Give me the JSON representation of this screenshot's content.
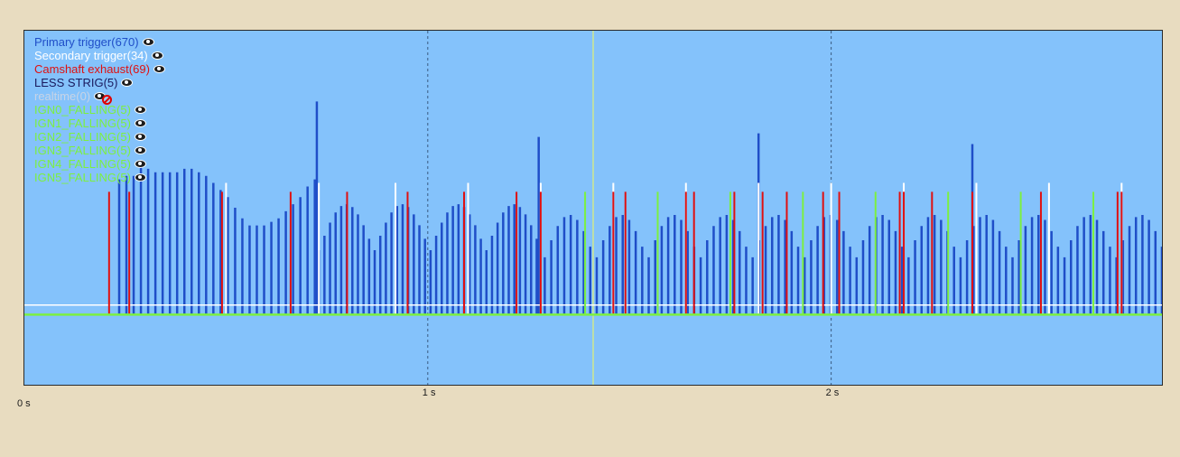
{
  "legend": [
    {
      "label": "Primary trigger(670)",
      "color": "#1f4ec8",
      "icon": "eye-icon",
      "visible": true
    },
    {
      "label": "Secondary trigger(34)",
      "color": "#ffffff",
      "icon": "eye-icon",
      "visible": true
    },
    {
      "label": "Camshaft exhaust(69)",
      "color": "#e01010",
      "icon": "eye-icon",
      "visible": true
    },
    {
      "label": "LESS STRIG(5)",
      "color": "#1a1a5e",
      "icon": "eye-icon",
      "visible": true
    },
    {
      "label": "realtime(0)",
      "color": "#c8d4e6",
      "icon": "eye-hidden-icon",
      "visible": false
    },
    {
      "label": "IGN0_FALLING(5)",
      "color": "#7cf040",
      "icon": "eye-icon",
      "visible": true
    },
    {
      "label": "IGN1_FALLING(5)",
      "color": "#7cf040",
      "icon": "eye-icon",
      "visible": true
    },
    {
      "label": "IGN2_FALLING(5)",
      "color": "#7cf040",
      "icon": "eye-icon",
      "visible": true
    },
    {
      "label": "IGN3_FALLING(5)",
      "color": "#7cf040",
      "icon": "eye-icon",
      "visible": true
    },
    {
      "label": "IGN4_FALLING(5)",
      "color": "#7cf040",
      "icon": "eye-icon",
      "visible": true
    },
    {
      "label": "IGN5_FALLING(5)",
      "color": "#7cf040",
      "icon": "eye-icon",
      "visible": true
    }
  ],
  "axis": {
    "x_ticks": [
      {
        "value": 0,
        "label": "0 s"
      },
      {
        "value": 1,
        "label": "1 s"
      },
      {
        "value": 2,
        "label": "2 s"
      }
    ]
  },
  "chart_data": {
    "type": "bar",
    "xlabel": "",
    "ylabel": "",
    "xlim": [
      0,
      2.82
    ],
    "ylim": [
      0,
      1
    ],
    "grid_lines_x": [
      1,
      2
    ],
    "grid_color": "#3a5a80",
    "cursor_x": 1.41,
    "cursor_color": "#cfe890",
    "baseline": 0.2,
    "white_baseline": 0.225,
    "green_baseline": 0.198,
    "primary_color": "#1f4ec8",
    "secondary_color": "#ffffff",
    "camshaft_color": "#e01010",
    "ign_color": "#7cf040",
    "primary_pulses": {
      "segments": [
        {
          "start": 0.235,
          "end": 0.72,
          "count": 28,
          "heights": [
            0.58,
            0.59,
            0.59,
            0.62,
            0.61,
            0.6,
            0.6,
            0.6,
            0.6,
            0.61,
            0.61,
            0.6,
            0.59,
            0.57,
            0.55,
            0.53,
            0.5,
            0.47,
            0.45,
            0.45,
            0.45,
            0.46,
            0.47,
            0.49,
            0.51,
            0.53,
            0.56,
            0.58
          ]
        },
        {
          "start": 0.73,
          "end": 1.27,
          "cycles": 4,
          "count_per_cycle": 10,
          "low": 0.38,
          "high": 0.51
        },
        {
          "start": 1.29,
          "end": 2.82,
          "cycles": 12,
          "count_per_cycle": 8,
          "low": 0.36,
          "high": 0.48
        }
      ],
      "spikes": [
        {
          "x": 0.725,
          "height": 0.8
        },
        {
          "x": 1.275,
          "height": 0.7
        },
        {
          "x": 1.82,
          "height": 0.71
        },
        {
          "x": 2.35,
          "height": 0.68
        }
      ]
    },
    "secondary_trigger_x": [
      0.5,
      0.73,
      0.92,
      1.1,
      1.28,
      1.46,
      1.64,
      1.82,
      2.0,
      2.18,
      2.36,
      2.54,
      2.72
    ],
    "secondary_height": 0.57,
    "camshaft_x": [
      0.21,
      0.26,
      0.49,
      0.66,
      0.8,
      0.95,
      1.09,
      1.22,
      1.28,
      1.46,
      1.49,
      1.64,
      1.66,
      1.76,
      1.83,
      1.89,
      1.98,
      2.02,
      2.17,
      2.18,
      2.25,
      2.35,
      2.52,
      2.71,
      2.72
    ],
    "camshaft_height": 0.545,
    "ign_x": [
      1.39,
      1.57,
      1.75,
      1.93,
      2.11,
      2.29,
      2.47,
      2.65
    ],
    "ign_height": 0.545
  }
}
